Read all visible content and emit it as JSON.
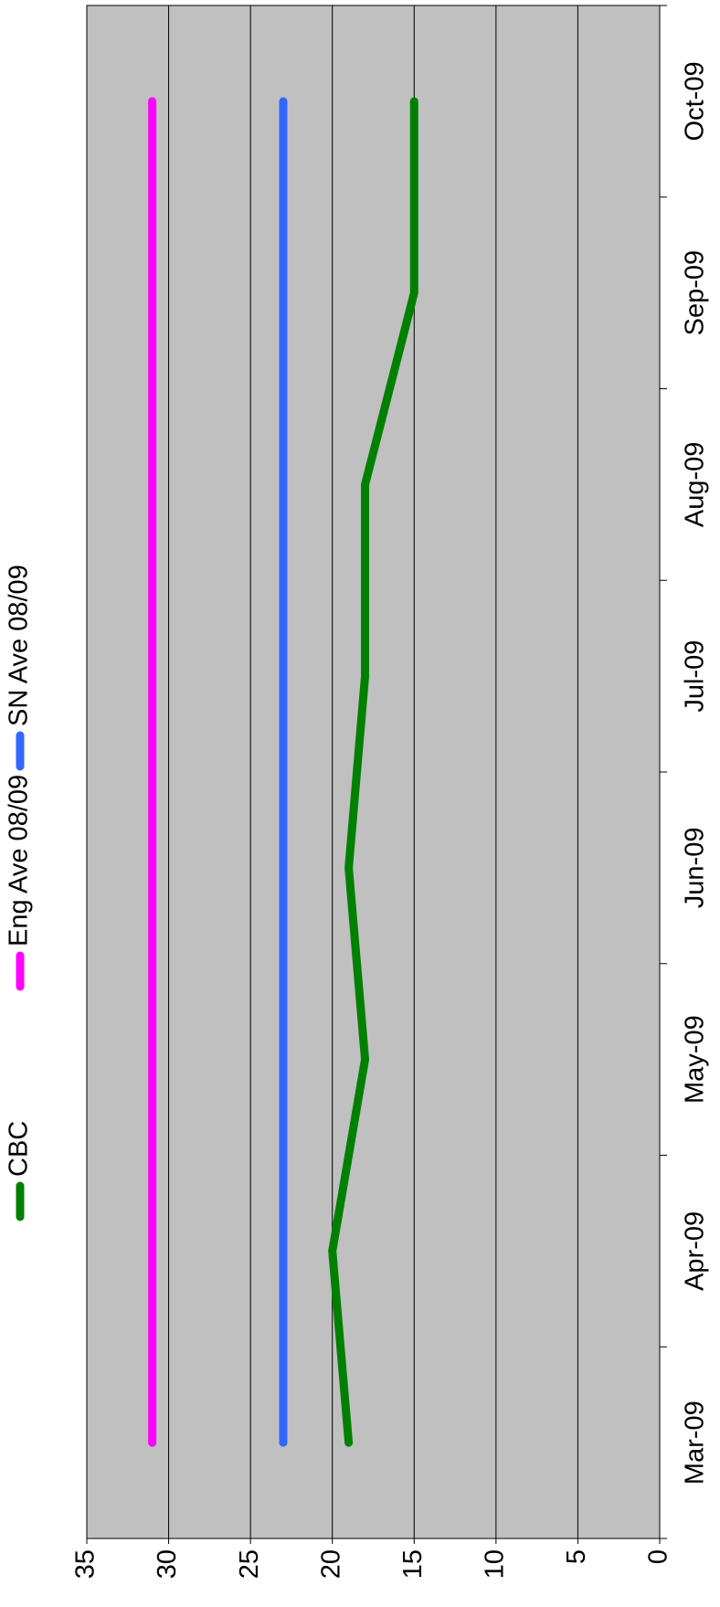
{
  "chart_data": {
    "type": "line",
    "categories": [
      "Mar-09",
      "Apr-09",
      "May-09",
      "Jun-09",
      "Jul-09",
      "Aug-09",
      "Sep-09",
      "Oct-09"
    ],
    "series": [
      {
        "name": "CBC",
        "color": "#008000",
        "values": [
          19,
          20,
          18,
          19,
          18,
          18,
          15,
          15
        ]
      },
      {
        "name": "Eng Ave 08/09",
        "color": "#ff00ff",
        "values": [
          31,
          31,
          31,
          31,
          31,
          31,
          31,
          31
        ]
      },
      {
        "name": "SN Ave 08/09",
        "color": "#3366ff",
        "values": [
          23,
          23,
          23,
          23,
          23,
          23,
          23,
          23
        ]
      }
    ],
    "ylim": [
      0,
      35
    ],
    "yticks": [
      0,
      5,
      10,
      15,
      20,
      25,
      30,
      35
    ],
    "grid": true,
    "legend": "top"
  }
}
